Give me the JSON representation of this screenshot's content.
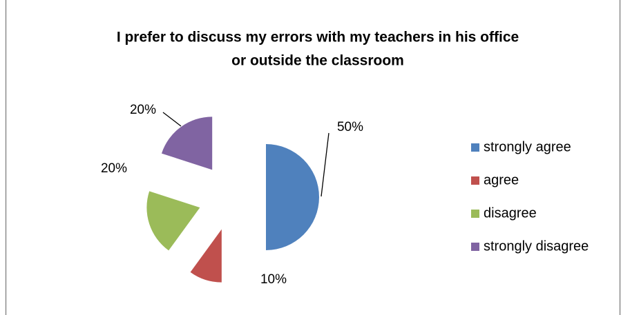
{
  "chart_data": {
    "type": "pie",
    "title": [
      "I prefer to discuss my errors with my teachers in his office",
      "or outside the classroom"
    ],
    "categories": [
      "strongly agree",
      "agree",
      "disagree",
      "strongly disagree"
    ],
    "values": [
      50,
      10,
      20,
      20
    ],
    "value_labels": [
      "50%",
      "10%",
      "20%",
      "20%"
    ],
    "colors": [
      "#4f81bd",
      "#c0504d",
      "#9bbb59",
      "#8064a2"
    ],
    "exploded": true,
    "legend": "right"
  }
}
